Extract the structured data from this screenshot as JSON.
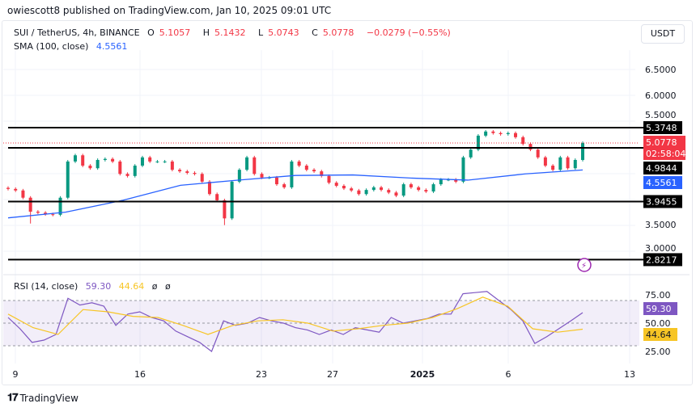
{
  "header": {
    "published": "owiescott8 published on TradingView.com, Jan 10, 2025 09:01 UTC"
  },
  "legend": {
    "symbol": "SUI / TetherUS, 4h, BINANCE",
    "o_label": "O",
    "o": "5.1057",
    "h_label": "H",
    "h": "5.1432",
    "l_label": "L",
    "l": "5.0743",
    "c_label": "C",
    "c": "5.0778",
    "change": "−0.0279 (−0.55%)",
    "sma_label": "SMA (100, close)",
    "sma": "4.5561"
  },
  "currency_button": "USDT",
  "rsi_legend": {
    "label": "RSI (14, close)",
    "rsi": "59.30",
    "ma": "44.64",
    "extra1": "ø",
    "extra2": "ø"
  },
  "branding": "TradingView",
  "colors": {
    "up": "#089981",
    "down": "#f23645",
    "sma": "#2962ff",
    "rsi": "#7e57c2",
    "rsi_ma": "#f7c525",
    "band": "#7e57c2"
  },
  "chart_data": [
    {
      "type": "candlestick",
      "title": "SUI / TetherUS, 4h, BINANCE",
      "ylim": [
        2.75,
        7.0
      ],
      "y_ticks": [
        "6.5000",
        "6.0000",
        "5.5000",
        "3.5000",
        "3.0000"
      ],
      "x_ticks": [
        "9",
        "16",
        "23",
        "27",
        "2025",
        "6",
        "13"
      ],
      "closes": [
        4.19,
        4.16,
        4.02,
        3.75,
        3.73,
        3.7,
        3.69,
        4.02,
        4.72,
        4.84,
        4.64,
        4.59,
        4.75,
        4.77,
        4.72,
        4.48,
        4.44,
        4.64,
        4.8,
        4.72,
        4.72,
        4.72,
        4.56,
        4.53,
        4.5,
        4.48,
        4.33,
        4.09,
        3.97,
        3.62,
        4.33,
        4.56,
        4.8,
        4.48,
        4.41,
        4.41,
        4.28,
        4.22,
        4.72,
        4.64,
        4.56,
        4.53,
        4.44,
        4.31,
        4.25,
        4.2,
        4.16,
        4.09,
        4.17,
        4.22,
        4.17,
        4.12,
        4.06,
        4.28,
        4.22,
        4.17,
        4.14,
        4.28,
        4.37,
        4.37,
        4.33,
        4.8,
        4.95,
        5.22,
        5.3,
        5.27,
        5.25,
        5.27,
        5.19,
        5.06,
        4.95,
        4.8,
        4.64,
        4.56,
        4.8,
        4.59,
        4.75,
        5.0778
      ],
      "sma_series": {
        "name": "SMA (100, close)",
        "values": [
          3.63,
          3.74,
          3.97,
          4.26,
          4.36,
          4.45,
          4.46,
          4.4,
          4.36,
          4.48,
          4.5561
        ]
      },
      "horizontal_levels": [
        "5.3748",
        "4.9844",
        "3.9455",
        "2.8217"
      ],
      "last_price": {
        "value": "5.0778",
        "countdown": "02:58:04"
      },
      "sma_last": "4.5561"
    },
    {
      "type": "line",
      "title": "RSI (14, close)",
      "ylim": [
        15,
        85
      ],
      "y_ticks": [
        "75.00",
        "50.00",
        "25.00"
      ],
      "bands": [
        70,
        50,
        30
      ],
      "series": [
        {
          "name": "RSI",
          "values": [
            55,
            45,
            33,
            35,
            40,
            72,
            66,
            68,
            65,
            48,
            58,
            60,
            55,
            52,
            43,
            38,
            33,
            25,
            52,
            48,
            50,
            55,
            52,
            50,
            46,
            44,
            40,
            44,
            40,
            46,
            44,
            42,
            55,
            50,
            52,
            54,
            58,
            58,
            76,
            77,
            78,
            70,
            62,
            52,
            32,
            38,
            45,
            52,
            59.3
          ]
        },
        {
          "name": "MA",
          "values": [
            58,
            46,
            40,
            62,
            60,
            56,
            55,
            48,
            40,
            48,
            52,
            53,
            50,
            43,
            45,
            48,
            50,
            55,
            63,
            73,
            65,
            45,
            42,
            44.64
          ]
        }
      ],
      "last_values": {
        "rsi": "59.30",
        "ma": "44.64"
      }
    }
  ]
}
